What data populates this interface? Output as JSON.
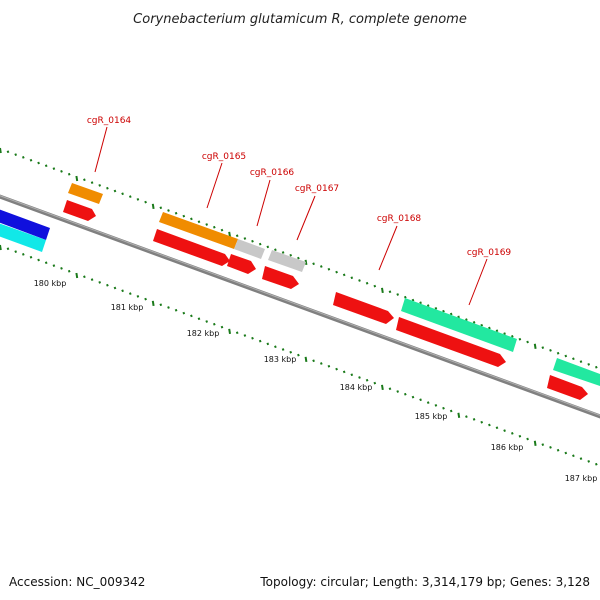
{
  "title": "Corynebacterium glutamicum R, complete genome",
  "footer": {
    "accession": "Accession: NC_009342",
    "summary": "Topology: circular; Length: 3,314,179 bp; Genes: 3,128"
  },
  "colors": {
    "backbone": "#808080",
    "tick": "#1a7a1a",
    "label": "#cc0000",
    "cds": "#ee1111",
    "orange": "#f08c00",
    "gray": "#c8c8c8",
    "teal": "#22e8a0",
    "blue": "#1010dd",
    "cyan": "#11e8e8"
  },
  "ticks": [
    {
      "label": "180 kbp"
    },
    {
      "label": "181 kbp"
    },
    {
      "label": "182 kbp"
    },
    {
      "label": "183 kbp"
    },
    {
      "label": "184 kbp"
    },
    {
      "label": "185 kbp"
    },
    {
      "label": "186 kbp"
    },
    {
      "label": "187 kbp"
    }
  ],
  "gene_labels": [
    {
      "name": "cgR_0164"
    },
    {
      "name": "cgR_0165"
    },
    {
      "name": "cgR_0166"
    },
    {
      "name": "cgR_0167"
    },
    {
      "name": "cgR_0168"
    },
    {
      "name": "cgR_0169"
    }
  ]
}
